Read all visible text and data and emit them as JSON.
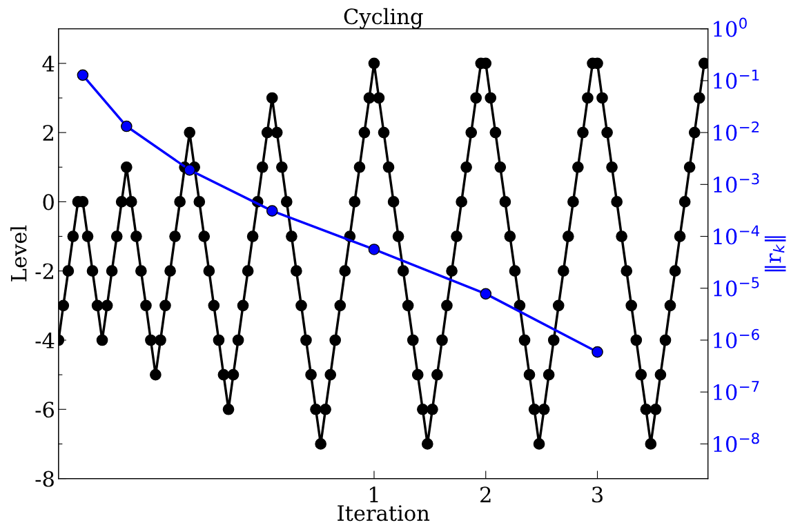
{
  "chart_data": {
    "type": "line",
    "title": "Cycling",
    "xlabel": "Iteration",
    "ylabel": "Level",
    "y2label": "‖r$_{k}$‖",
    "marker": "circle",
    "line_style": "solid",
    "grid": false,
    "log": "y2",
    "xlim": [
      -1.826,
      3.99
    ],
    "xticks": [
      1,
      2,
      3
    ],
    "ylim": [
      -8,
      5
    ],
    "yticks": [
      {
        "value": -8,
        "label": "-8"
      },
      {
        "value": -7,
        "label": null
      },
      {
        "value": -6,
        "label": "-6"
      },
      {
        "value": -5,
        "label": null
      },
      {
        "value": -4,
        "label": "-4"
      },
      {
        "value": -3,
        "label": null
      },
      {
        "value": -2,
        "label": "-2"
      },
      {
        "value": -1,
        "label": null
      },
      0,
      {
        "value": 1,
        "label": null
      },
      2,
      {
        "value": 3,
        "label": null
      },
      4
    ],
    "y2lim": [
      2.15e-09,
      1
    ],
    "y2ticks": [
      {
        "value": 1,
        "label": "10$^{0}$"
      },
      {
        "value": 0.1,
        "label": "10$^{−1}$"
      },
      {
        "value": 0.01,
        "label": "10$^{−2}$"
      },
      {
        "value": 0.001,
        "label": "10$^{−3}$"
      },
      {
        "value": 0.0001,
        "label": "10$^{−4}$"
      },
      {
        "value": 1e-05,
        "label": "10$^{−5}$"
      },
      {
        "value": 1e-06,
        "label": "10$^{−6}$"
      },
      {
        "value": 1e-07,
        "label": "10$^{−7}$"
      },
      {
        "value": 1e-08,
        "label": "10$^{−8}$"
      }
    ],
    "series": [
      {
        "color": "#000000",
        "x": [
          -1.826,
          -1.783,
          -1.739,
          -1.696,
          -1.652,
          -1.609,
          -1.565,
          -1.522,
          -1.478,
          -1.435,
          -1.391,
          -1.348,
          -1.304,
          -1.261,
          -1.217,
          -1.174,
          -1.13,
          -1.087,
          -1.043,
          -1.0,
          -0.957,
          -0.913,
          -0.87,
          -0.826,
          -0.783,
          -0.739,
          -0.696,
          -0.652,
          -0.609,
          -0.565,
          -0.522,
          -0.478,
          -0.435,
          -0.391,
          -0.348,
          -0.304,
          -0.261,
          -0.217,
          -0.174,
          -0.13,
          -0.087,
          -0.043,
          0,
          0.043,
          0.087,
          0.13,
          0.174,
          0.217,
          0.261,
          0.304,
          0.348,
          0.391,
          0.435,
          0.478,
          0.522,
          0.565,
          0.609,
          0.652,
          0.696,
          0.739,
          0.783,
          0.826,
          0.87,
          0.913,
          0.957,
          1,
          1.043,
          1.087,
          1.13,
          1.174,
          1.217,
          1.261,
          1.304,
          1.348,
          1.391,
          1.435,
          1.478,
          1.522,
          1.565,
          1.609,
          1.652,
          1.696,
          1.739,
          1.783,
          1.826,
          1.87,
          1.913,
          1.957,
          2,
          2.043,
          2.087,
          2.13,
          2.174,
          2.217,
          2.261,
          2.304,
          2.348,
          2.391,
          2.435,
          2.478,
          2.522,
          2.565,
          2.609,
          2.652,
          2.696,
          2.739,
          2.783,
          2.826,
          2.87,
          2.913,
          2.957,
          3,
          3.043,
          3.087,
          3.13,
          3.174,
          3.217,
          3.261,
          3.304,
          3.348,
          3.391,
          3.435,
          3.478,
          3.522,
          3.565,
          3.609,
          3.652,
          3.696,
          3.739,
          3.783,
          3.826,
          3.87,
          3.913,
          3.957
        ],
        "values": [
          -4,
          -3,
          -2,
          -1,
          0,
          0,
          -1,
          -2,
          -3,
          -4,
          -3,
          -2,
          -1,
          0,
          1,
          0,
          -1,
          -2,
          -3,
          -4,
          -5,
          -4,
          -3,
          -2,
          -1,
          0,
          1,
          2,
          1,
          0,
          -1,
          -2,
          -3,
          -4,
          -5,
          -6,
          -5,
          -4,
          -3,
          -2,
          -1,
          0,
          1,
          2,
          3,
          2,
          1,
          0,
          -1,
          -2,
          -3,
          -4,
          -5,
          -6,
          -7,
          -6,
          -5,
          -4,
          -3,
          -2,
          -1,
          0,
          1,
          2,
          3,
          4,
          3,
          2,
          1,
          0,
          -1,
          -2,
          -3,
          -4,
          -5,
          -6,
          -7,
          -6,
          -5,
          -4,
          -3,
          -2,
          -1,
          0,
          1,
          2,
          3,
          4,
          4,
          3,
          2,
          1,
          0,
          -1,
          -2,
          -3,
          -4,
          -5,
          -6,
          -7,
          -6,
          -5,
          -4,
          -3,
          -2,
          -1,
          0,
          1,
          2,
          3,
          4,
          4,
          3,
          2,
          1,
          0,
          -1,
          -2,
          -3,
          -4,
          -5,
          -6,
          -7,
          -6,
          -5,
          -4,
          -3,
          -2,
          -1,
          0,
          1,
          2,
          3,
          4
        ]
      },
      {
        "color": "#0000ff",
        "axis": "y2",
        "x": [
          -1.609,
          -1.217,
          -0.652,
          0.087,
          1,
          2,
          3
        ],
        "values": [
          0.128,
          0.0132,
          0.0019,
          0.00031,
          5.6e-05,
          7.8e-06,
          5.9e-07
        ]
      }
    ]
  }
}
